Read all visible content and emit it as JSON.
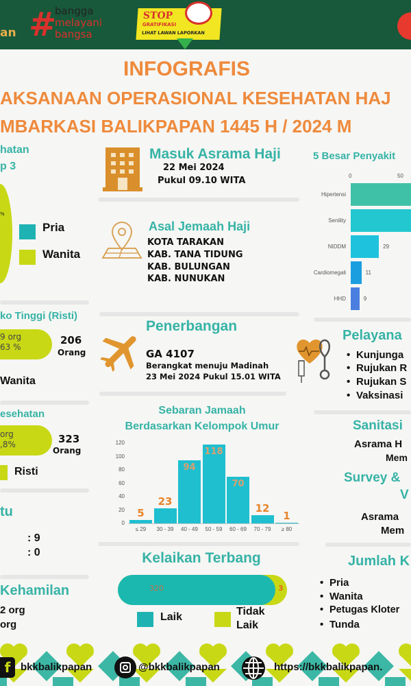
{
  "header": {
    "left_fragment": "an",
    "logo_bangga": [
      "bangga",
      "melayani",
      "bangsa"
    ],
    "stop_badge": {
      "line1": "STOP",
      "line2": "GRATIFIKASI",
      "line3": "LIHAT LAWAN LAPORKAN"
    },
    "colors": {
      "bg": "#17593a",
      "accent": "#ee8a3c"
    }
  },
  "title": {
    "line1": "INFOGRAFIS",
    "line2": "AKSANAAN OPERASIONAL KESEHATAN HAJ",
    "line3": "MBARKASI BALIKPAPAN 1445 H / 2024 M"
  },
  "left": {
    "pie_heading": [
      "hatan",
      "p 3"
    ],
    "pie_pct": "%",
    "legend": [
      "Pria",
      "Wanita"
    ],
    "risti": {
      "heading": "ko Tinggi (Risti)",
      "pill": [
        "9 org",
        "63 %"
      ],
      "total": "206",
      "unit": "Orang",
      "label": "Wanita"
    },
    "kesehatan": {
      "heading": "esehatan",
      "pill": [
        "org",
        ",8%"
      ],
      "total": "323",
      "unit": "Orang",
      "legend": "Risti"
    },
    "third": {
      "heading": "tu",
      "values": [
        ": 9",
        ": 0"
      ]
    },
    "kehamilan": {
      "heading": "Kehamilan",
      "values": [
        "2 org",
        "org"
      ]
    }
  },
  "middle": {
    "asrama": {
      "heading": "Masuk Asrama Haji",
      "date": "22 Mei 2024",
      "time": "Pukul 09.10 WITA"
    },
    "asal": {
      "heading": "Asal Jemaah Haji",
      "items": [
        "KOTA TARAKAN",
        "KAB. TANA TIDUNG",
        "KAB. BULUNGAN",
        "KAB. NUNUKAN"
      ]
    },
    "penerbangan": {
      "heading": "Penerbangan",
      "flight": "GA 4107",
      "line1": "Berangkat menuju Madinah",
      "line2": "23 Mei 2024 Pukul 15.01 WITA"
    },
    "kelaikan": {
      "heading": "Kelaikan Terbang",
      "laik_value": "320",
      "tidak_value": "3",
      "laik": 320,
      "tidak_laik": 3,
      "legend": [
        "Laik",
        "Tidak",
        "Laik"
      ]
    }
  },
  "right": {
    "penyakit_heading": "5 Besar Penyakit",
    "pelayanan": {
      "heading": "Pelayana",
      "items": [
        "Kunjunga",
        "Rujukan R",
        "Rujukan S",
        "Vaksinasi"
      ]
    },
    "sanitasi": {
      "heading": "Sanitasi",
      "line1": "Asrama H",
      "line2": "Mem"
    },
    "survey": {
      "heading": "Survey &",
      "heading2": "V",
      "line1": "Asrama",
      "line2": "Mem"
    },
    "jumlah": {
      "heading": "Jumlah K",
      "items": [
        "Pria",
        "Wanita",
        "Petugas Kloter",
        "Tunda"
      ]
    }
  },
  "footer": {
    "facebook": "bkkbalikpapan",
    "instagram": "@bkkbalikpapan",
    "website": "https://bkkbalikpapan."
  },
  "chart_data": [
    {
      "type": "bar",
      "title": "Sebaran Jamaah",
      "subtitle": "Berdasarkan Kelompok Umur",
      "categories": [
        "≤ 29",
        "30 - 39",
        "40 - 49",
        "50 - 59",
        "60 - 69",
        "70 - 79",
        "≥ 80"
      ],
      "values": [
        5,
        23,
        94,
        118,
        70,
        12,
        1
      ],
      "value_labels": [
        "5",
        "23",
        "94",
        "118",
        "70",
        "12",
        "1"
      ],
      "yticks": [
        "0",
        "20",
        "40",
        "60",
        "80",
        "100",
        "120"
      ],
      "ylim": [
        0,
        120
      ],
      "color": "#1fbfd0"
    },
    {
      "type": "bar",
      "orientation": "horizontal",
      "categories": [
        "Hipertensi",
        "Senility",
        "NIDDM",
        "Cardiomegali",
        "HHD"
      ],
      "values": [
        null,
        null,
        29,
        11,
        9
      ],
      "value_labels": [
        "",
        "",
        "29",
        "11",
        "9"
      ],
      "xticks": [
        "0",
        "50"
      ],
      "colors": [
        "#3fc1a7",
        "#22c7cf",
        "#1fc2dc",
        "#1a9ee0",
        "#4a7fe0"
      ]
    }
  ]
}
